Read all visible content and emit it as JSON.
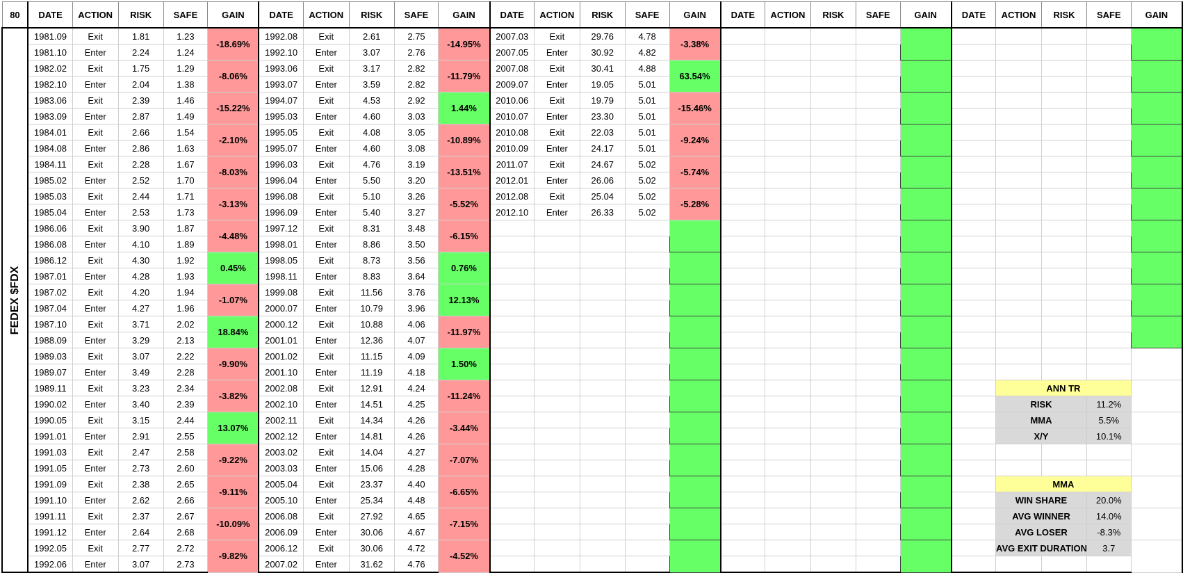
{
  "corner_label": "80",
  "ticker_label": "FEDEX $FDX",
  "headers": [
    "DATE",
    "ACTION",
    "RISK",
    "SAFE",
    "GAIN"
  ],
  "colors": {
    "loss": "#ff9999",
    "win": "#66ff66",
    "summary_header": "#ffff99",
    "summary_body": "#d9d9d9"
  },
  "blocks": [
    {
      "rows": [
        {
          "date": "1981.09",
          "action": "Exit",
          "risk": "1.81",
          "safe": "1.23"
        },
        {
          "date": "1981.10",
          "action": "Enter",
          "risk": "2.24",
          "safe": "1.24"
        },
        {
          "date": "1982.02",
          "action": "Exit",
          "risk": "1.75",
          "safe": "1.29"
        },
        {
          "date": "1982.10",
          "action": "Enter",
          "risk": "2.04",
          "safe": "1.38"
        },
        {
          "date": "1983.06",
          "action": "Exit",
          "risk": "2.39",
          "safe": "1.46"
        },
        {
          "date": "1983.09",
          "action": "Enter",
          "risk": "2.87",
          "safe": "1.49"
        },
        {
          "date": "1984.01",
          "action": "Exit",
          "risk": "2.66",
          "safe": "1.54"
        },
        {
          "date": "1984.08",
          "action": "Enter",
          "risk": "2.86",
          "safe": "1.63"
        },
        {
          "date": "1984.11",
          "action": "Exit",
          "risk": "2.28",
          "safe": "1.67"
        },
        {
          "date": "1985.02",
          "action": "Enter",
          "risk": "2.52",
          "safe": "1.70"
        },
        {
          "date": "1985.03",
          "action": "Exit",
          "risk": "2.44",
          "safe": "1.71"
        },
        {
          "date": "1985.04",
          "action": "Enter",
          "risk": "2.53",
          "safe": "1.73"
        },
        {
          "date": "1986.06",
          "action": "Exit",
          "risk": "3.90",
          "safe": "1.87"
        },
        {
          "date": "1986.08",
          "action": "Enter",
          "risk": "4.10",
          "safe": "1.89"
        },
        {
          "date": "1986.12",
          "action": "Exit",
          "risk": "4.30",
          "safe": "1.92"
        },
        {
          "date": "1987.01",
          "action": "Enter",
          "risk": "4.28",
          "safe": "1.93"
        },
        {
          "date": "1987.02",
          "action": "Exit",
          "risk": "4.20",
          "safe": "1.94"
        },
        {
          "date": "1987.04",
          "action": "Enter",
          "risk": "4.27",
          "safe": "1.96"
        },
        {
          "date": "1987.10",
          "action": "Exit",
          "risk": "3.71",
          "safe": "2.02"
        },
        {
          "date": "1988.09",
          "action": "Enter",
          "risk": "3.29",
          "safe": "2.13"
        },
        {
          "date": "1989.03",
          "action": "Exit",
          "risk": "3.07",
          "safe": "2.22"
        },
        {
          "date": "1989.07",
          "action": "Enter",
          "risk": "3.49",
          "safe": "2.28"
        },
        {
          "date": "1989.11",
          "action": "Exit",
          "risk": "3.23",
          "safe": "2.34"
        },
        {
          "date": "1990.02",
          "action": "Enter",
          "risk": "3.40",
          "safe": "2.39"
        },
        {
          "date": "1990.05",
          "action": "Exit",
          "risk": "3.15",
          "safe": "2.44"
        },
        {
          "date": "1991.01",
          "action": "Enter",
          "risk": "2.91",
          "safe": "2.55"
        },
        {
          "date": "1991.03",
          "action": "Exit",
          "risk": "2.47",
          "safe": "2.58"
        },
        {
          "date": "1991.05",
          "action": "Enter",
          "risk": "2.73",
          "safe": "2.60"
        },
        {
          "date": "1991.09",
          "action": "Exit",
          "risk": "2.38",
          "safe": "2.65"
        },
        {
          "date": "1991.10",
          "action": "Enter",
          "risk": "2.62",
          "safe": "2.66"
        },
        {
          "date": "1991.11",
          "action": "Exit",
          "risk": "2.37",
          "safe": "2.67"
        },
        {
          "date": "1991.12",
          "action": "Enter",
          "risk": "2.64",
          "safe": "2.68"
        },
        {
          "date": "1992.05",
          "action": "Exit",
          "risk": "2.77",
          "safe": "2.72"
        },
        {
          "date": "1992.06",
          "action": "Enter",
          "risk": "3.07",
          "safe": "2.73"
        }
      ],
      "gains": [
        {
          "value": "-18.69%",
          "type": "loss"
        },
        {
          "value": "-8.06%",
          "type": "loss"
        },
        {
          "value": "-15.22%",
          "type": "loss"
        },
        {
          "value": "-2.10%",
          "type": "loss"
        },
        {
          "value": "-8.03%",
          "type": "loss"
        },
        {
          "value": "-3.13%",
          "type": "loss"
        },
        {
          "value": "-4.48%",
          "type": "loss"
        },
        {
          "value": "0.45%",
          "type": "win"
        },
        {
          "value": "-1.07%",
          "type": "loss"
        },
        {
          "value": "18.84%",
          "type": "win"
        },
        {
          "value": "-9.90%",
          "type": "loss"
        },
        {
          "value": "-3.82%",
          "type": "loss"
        },
        {
          "value": "13.07%",
          "type": "win"
        },
        {
          "value": "-9.22%",
          "type": "loss"
        },
        {
          "value": "-9.11%",
          "type": "loss"
        },
        {
          "value": "-10.09%",
          "type": "loss"
        },
        {
          "value": "-9.82%",
          "type": "loss"
        }
      ]
    },
    {
      "rows": [
        {
          "date": "1992.08",
          "action": "Exit",
          "risk": "2.61",
          "safe": "2.75"
        },
        {
          "date": "1992.10",
          "action": "Enter",
          "risk": "3.07",
          "safe": "2.76"
        },
        {
          "date": "1993.06",
          "action": "Exit",
          "risk": "3.17",
          "safe": "2.82"
        },
        {
          "date": "1993.07",
          "action": "Enter",
          "risk": "3.59",
          "safe": "2.82"
        },
        {
          "date": "1994.07",
          "action": "Exit",
          "risk": "4.53",
          "safe": "2.92"
        },
        {
          "date": "1995.03",
          "action": "Enter",
          "risk": "4.60",
          "safe": "3.03"
        },
        {
          "date": "1995.05",
          "action": "Exit",
          "risk": "4.08",
          "safe": "3.05"
        },
        {
          "date": "1995.07",
          "action": "Enter",
          "risk": "4.60",
          "safe": "3.08"
        },
        {
          "date": "1996.03",
          "action": "Exit",
          "risk": "4.76",
          "safe": "3.19"
        },
        {
          "date": "1996.04",
          "action": "Enter",
          "risk": "5.50",
          "safe": "3.20"
        },
        {
          "date": "1996.08",
          "action": "Exit",
          "risk": "5.10",
          "safe": "3.26"
        },
        {
          "date": "1996.09",
          "action": "Enter",
          "risk": "5.40",
          "safe": "3.27"
        },
        {
          "date": "1997.12",
          "action": "Exit",
          "risk": "8.31",
          "safe": "3.48"
        },
        {
          "date": "1998.01",
          "action": "Enter",
          "risk": "8.86",
          "safe": "3.50"
        },
        {
          "date": "1998.05",
          "action": "Exit",
          "risk": "8.73",
          "safe": "3.56"
        },
        {
          "date": "1998.11",
          "action": "Enter",
          "risk": "8.83",
          "safe": "3.64"
        },
        {
          "date": "1999.08",
          "action": "Exit",
          "risk": "11.56",
          "safe": "3.76"
        },
        {
          "date": "2000.07",
          "action": "Enter",
          "risk": "10.79",
          "safe": "3.96"
        },
        {
          "date": "2000.12",
          "action": "Exit",
          "risk": "10.88",
          "safe": "4.06"
        },
        {
          "date": "2001.01",
          "action": "Enter",
          "risk": "12.36",
          "safe": "4.07"
        },
        {
          "date": "2001.02",
          "action": "Exit",
          "risk": "11.15",
          "safe": "4.09"
        },
        {
          "date": "2001.10",
          "action": "Enter",
          "risk": "11.19",
          "safe": "4.18"
        },
        {
          "date": "2002.08",
          "action": "Exit",
          "risk": "12.91",
          "safe": "4.24"
        },
        {
          "date": "2002.10",
          "action": "Enter",
          "risk": "14.51",
          "safe": "4.25"
        },
        {
          "date": "2002.11",
          "action": "Exit",
          "risk": "14.34",
          "safe": "4.26"
        },
        {
          "date": "2002.12",
          "action": "Enter",
          "risk": "14.81",
          "safe": "4.26"
        },
        {
          "date": "2003.02",
          "action": "Exit",
          "risk": "14.04",
          "safe": "4.27"
        },
        {
          "date": "2003.03",
          "action": "Enter",
          "risk": "15.06",
          "safe": "4.28"
        },
        {
          "date": "2005.04",
          "action": "Exit",
          "risk": "23.37",
          "safe": "4.40"
        },
        {
          "date": "2005.10",
          "action": "Enter",
          "risk": "25.34",
          "safe": "4.48"
        },
        {
          "date": "2006.08",
          "action": "Exit",
          "risk": "27.92",
          "safe": "4.65"
        },
        {
          "date": "2006.09",
          "action": "Enter",
          "risk": "30.06",
          "safe": "4.67"
        },
        {
          "date": "2006.12",
          "action": "Exit",
          "risk": "30.06",
          "safe": "4.72"
        },
        {
          "date": "2007.02",
          "action": "Enter",
          "risk": "31.62",
          "safe": "4.76"
        }
      ],
      "gains": [
        {
          "value": "-14.95%",
          "type": "loss"
        },
        {
          "value": "-11.79%",
          "type": "loss"
        },
        {
          "value": "1.44%",
          "type": "win"
        },
        {
          "value": "-10.89%",
          "type": "loss"
        },
        {
          "value": "-13.51%",
          "type": "loss"
        },
        {
          "value": "-5.52%",
          "type": "loss"
        },
        {
          "value": "-6.15%",
          "type": "loss"
        },
        {
          "value": "0.76%",
          "type": "win"
        },
        {
          "value": "12.13%",
          "type": "win"
        },
        {
          "value": "-11.97%",
          "type": "loss"
        },
        {
          "value": "1.50%",
          "type": "win"
        },
        {
          "value": "-11.24%",
          "type": "loss"
        },
        {
          "value": "-3.44%",
          "type": "loss"
        },
        {
          "value": "-7.07%",
          "type": "loss"
        },
        {
          "value": "-6.65%",
          "type": "loss"
        },
        {
          "value": "-7.15%",
          "type": "loss"
        },
        {
          "value": "-4.52%",
          "type": "loss"
        }
      ]
    },
    {
      "rows": [
        {
          "date": "2007.03",
          "action": "Exit",
          "risk": "29.76",
          "safe": "4.78"
        },
        {
          "date": "2007.05",
          "action": "Enter",
          "risk": "30.92",
          "safe": "4.82"
        },
        {
          "date": "2007.08",
          "action": "Exit",
          "risk": "30.41",
          "safe": "4.88"
        },
        {
          "date": "2009.07",
          "action": "Enter",
          "risk": "19.05",
          "safe": "5.01"
        },
        {
          "date": "2010.06",
          "action": "Exit",
          "risk": "19.79",
          "safe": "5.01"
        },
        {
          "date": "2010.07",
          "action": "Enter",
          "risk": "23.30",
          "safe": "5.01"
        },
        {
          "date": "2010.08",
          "action": "Exit",
          "risk": "22.03",
          "safe": "5.01"
        },
        {
          "date": "2010.09",
          "action": "Enter",
          "risk": "24.17",
          "safe": "5.01"
        },
        {
          "date": "2011.07",
          "action": "Exit",
          "risk": "24.67",
          "safe": "5.02"
        },
        {
          "date": "2012.01",
          "action": "Enter",
          "risk": "26.06",
          "safe": "5.02"
        },
        {
          "date": "2012.08",
          "action": "Exit",
          "risk": "25.04",
          "safe": "5.02"
        },
        {
          "date": "2012.10",
          "action": "Enter",
          "risk": "26.33",
          "safe": "5.02"
        }
      ],
      "gains": [
        {
          "value": "-3.38%",
          "type": "loss"
        },
        {
          "value": "63.54%",
          "type": "win"
        },
        {
          "value": "-15.46%",
          "type": "loss"
        },
        {
          "value": "-9.24%",
          "type": "loss"
        },
        {
          "value": "-5.74%",
          "type": "loss"
        },
        {
          "value": "-5.28%",
          "type": "loss"
        },
        {
          "value": "",
          "type": "green"
        },
        {
          "value": "",
          "type": "green"
        },
        {
          "value": "",
          "type": "green"
        },
        {
          "value": "",
          "type": "green"
        },
        {
          "value": "",
          "type": "green"
        },
        {
          "value": "",
          "type": "green"
        },
        {
          "value": "",
          "type": "green"
        },
        {
          "value": "",
          "type": "green"
        },
        {
          "value": "",
          "type": "green"
        },
        {
          "value": "",
          "type": "green"
        },
        {
          "value": "",
          "type": "green"
        }
      ]
    },
    {
      "rows": [],
      "gains": [
        {
          "value": "",
          "type": "green"
        },
        {
          "value": "",
          "type": "green"
        },
        {
          "value": "",
          "type": "green"
        },
        {
          "value": "",
          "type": "green"
        },
        {
          "value": "",
          "type": "green"
        },
        {
          "value": "",
          "type": "green"
        },
        {
          "value": "",
          "type": "green"
        },
        {
          "value": "",
          "type": "green"
        },
        {
          "value": "",
          "type": "green"
        },
        {
          "value": "",
          "type": "green"
        },
        {
          "value": "",
          "type": "green"
        },
        {
          "value": "",
          "type": "green"
        },
        {
          "value": "",
          "type": "green"
        },
        {
          "value": "",
          "type": "green"
        },
        {
          "value": "",
          "type": "green"
        },
        {
          "value": "",
          "type": "green"
        },
        {
          "value": "",
          "type": "green"
        }
      ]
    },
    {
      "rows": [],
      "gains": [
        {
          "value": "",
          "type": "green"
        },
        {
          "value": "",
          "type": "green"
        },
        {
          "value": "",
          "type": "green"
        },
        {
          "value": "",
          "type": "green"
        },
        {
          "value": "",
          "type": "green"
        },
        {
          "value": "",
          "type": "green"
        },
        {
          "value": "",
          "type": "green"
        },
        {
          "value": "",
          "type": "green"
        },
        {
          "value": "",
          "type": "green"
        },
        {
          "value": "",
          "type": "green"
        },
        {
          "value": "",
          "type": "none"
        },
        {
          "value": "",
          "type": "none"
        },
        {
          "value": "",
          "type": "none"
        },
        {
          "value": "",
          "type": "none"
        },
        {
          "value": "",
          "type": "none"
        },
        {
          "value": "",
          "type": "none"
        },
        {
          "value": "",
          "type": "none"
        }
      ]
    }
  ],
  "summary": {
    "ann_tr": {
      "title": "ANN TR",
      "rows": [
        {
          "label": "RISK",
          "value": "11.2%"
        },
        {
          "label": "MMA",
          "value": "5.5%"
        },
        {
          "label": "X/Y",
          "value": "10.1%"
        }
      ]
    },
    "mma": {
      "title": "MMA",
      "rows": [
        {
          "label": "WIN SHARE",
          "value": "20.0%"
        },
        {
          "label": "AVG WINNER",
          "value": "14.0%"
        },
        {
          "label": "AVG LOSER",
          "value": "-8.3%"
        },
        {
          "label": "AVG EXIT DURATION",
          "value": "3.7"
        }
      ]
    }
  }
}
